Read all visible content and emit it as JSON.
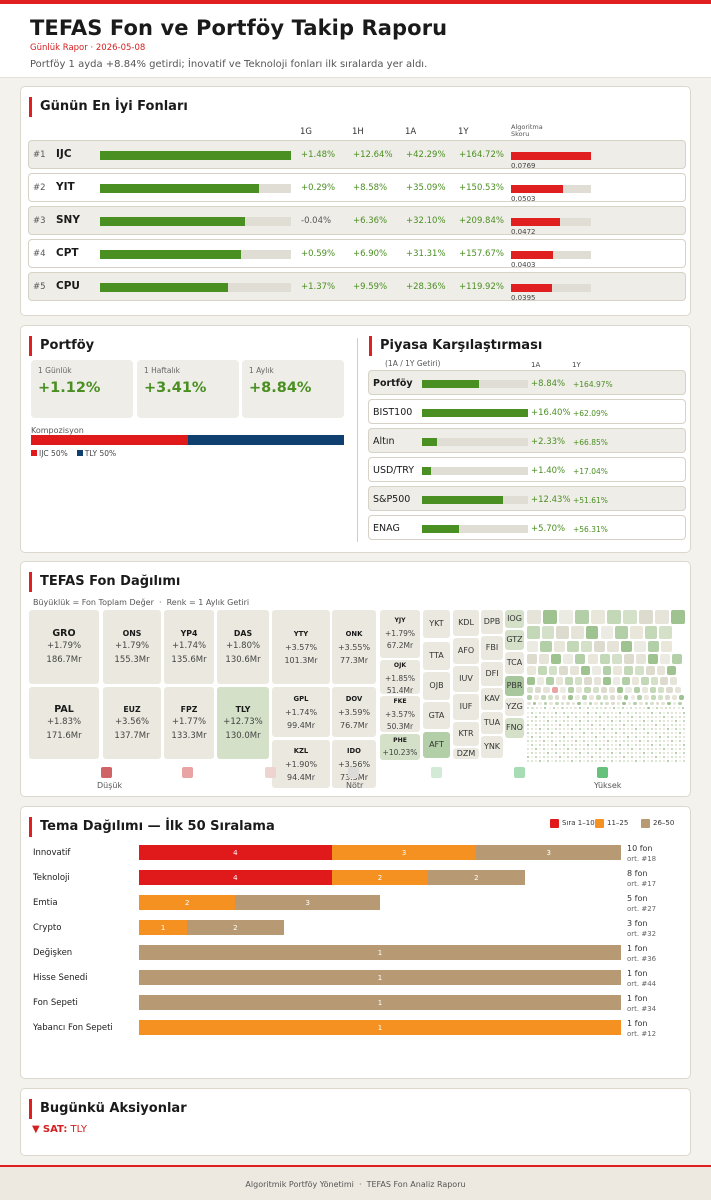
{
  "header": {
    "title": "TEFAS Fon ve Portföy Takip Raporu",
    "subtitle_type": "Günlük Rapor",
    "subtitle_date": "2026-05-08",
    "description": "Portföy 1 ayda +8.84% getirdi; İnovatif ve Teknoloji fonları ilk sıralarda yer aldı."
  },
  "top_funds": {
    "title": "Günün En İyi Fonları",
    "columns": [
      "1G",
      "1H",
      "1A",
      "1Y"
    ],
    "score_header_1": "Algoritma",
    "score_header_2": "Skoru",
    "rows": [
      {
        "rank": "#1",
        "code": "IJC",
        "g1": "+1.48%",
        "h1": "+12.64%",
        "a1": "+42.29%",
        "y1": "+164.72%",
        "score": "0.0769",
        "bar": 1.0,
        "score_frac": 1.0
      },
      {
        "rank": "#2",
        "code": "YIT",
        "g1": "+0.29%",
        "h1": "+8.58%",
        "a1": "+35.09%",
        "y1": "+150.53%",
        "score": "0.0503",
        "bar": 0.83,
        "score_frac": 0.65
      },
      {
        "rank": "#3",
        "code": "SNY",
        "g1": "-0.04%",
        "h1": "+6.36%",
        "a1": "+32.10%",
        "y1": "+209.84%",
        "score": "0.0472",
        "bar": 0.76,
        "score_frac": 0.61
      },
      {
        "rank": "#4",
        "code": "CPT",
        "g1": "+0.59%",
        "h1": "+6.90%",
        "a1": "+31.31%",
        "y1": "+157.67%",
        "score": "0.0403",
        "bar": 0.74,
        "score_frac": 0.52
      },
      {
        "rank": "#5",
        "code": "CPU",
        "g1": "+1.37%",
        "h1": "+9.59%",
        "a1": "+28.36%",
        "y1": "+119.92%",
        "score": "0.0395",
        "bar": 0.67,
        "score_frac": 0.51
      }
    ]
  },
  "portfolio": {
    "title": "Portföy",
    "stats": [
      {
        "label": "1 Günlük",
        "value": "+1.12%"
      },
      {
        "label": "1 Haftalık",
        "value": "+3.41%"
      },
      {
        "label": "1 Aylık",
        "value": "+8.84%"
      }
    ],
    "composition_label": "Kompozisyon",
    "composition": [
      {
        "name": "IJC 50%",
        "frac": 0.5,
        "color": "#e01a1a"
      },
      {
        "name": "TLY 50%",
        "frac": 0.5,
        "color": "#0e3f6e"
      }
    ]
  },
  "market": {
    "title": "Piyasa Karşılaştırması",
    "subtitle": "(1A / 1Y Getiri)",
    "col_a": "1A",
    "col_y": "1Y",
    "rows": [
      {
        "name": "Portföy",
        "a": "+8.84%",
        "y": "+164.97%",
        "frac": 0.54,
        "bold": true
      },
      {
        "name": "BIST100",
        "a": "+16.40%",
        "y": "+62.09%",
        "frac": 1.0,
        "bold": false
      },
      {
        "name": "Altın",
        "a": "+2.33%",
        "y": "+66.85%",
        "frac": 0.14,
        "bold": false
      },
      {
        "name": "USD/TRY",
        "a": "+1.40%",
        "y": "+17.04%",
        "frac": 0.085,
        "bold": false
      },
      {
        "name": "S&P500",
        "a": "+12.43%",
        "y": "+51.61%",
        "frac": 0.76,
        "bold": false
      },
      {
        "name": "ENAG",
        "a": "+5.70%",
        "y": "+56.31%",
        "frac": 0.35,
        "bold": false
      }
    ]
  },
  "treemap": {
    "title": "TEFAS Fon Dağılımı",
    "subtitle": "Büyüklük = Fon Toplam Değer  ·  Renk = 1 Aylık Getiri",
    "big": [
      {
        "code": "GRO",
        "pct": "+1.79%",
        "size": "186.7Mr"
      },
      {
        "code": "ONS",
        "pct": "+1.79%",
        "size": "155.3Mr"
      },
      {
        "code": "YP4",
        "pct": "+1.74%",
        "size": "135.6Mr"
      },
      {
        "code": "DAS",
        "pct": "+1.80%",
        "size": "130.6Mr"
      },
      {
        "code": "PAL",
        "pct": "+1.83%",
        "size": "171.6Mr"
      },
      {
        "code": "EUZ",
        "pct": "+3.56%",
        "size": "137.7Mr"
      },
      {
        "code": "FPZ",
        "pct": "+1.77%",
        "size": "133.3Mr"
      },
      {
        "code": "TLY",
        "pct": "+12.73%",
        "size": "130.0Mr"
      },
      {
        "code": "YTY",
        "pct": "+3.57%",
        "size": "101.3Mr"
      },
      {
        "code": "ONK",
        "pct": "+3.55%",
        "size": "77.3Mr"
      },
      {
        "code": "GPL",
        "pct": "+1.74%",
        "size": "99.4Mr"
      },
      {
        "code": "DOV",
        "pct": "+3.59%",
        "size": "76.7Mr"
      },
      {
        "code": "KZL",
        "pct": "+1.90%",
        "size": "94.4Mr"
      },
      {
        "code": "IDO",
        "pct": "+3.56%",
        "size": "73.5Mr"
      },
      {
        "code": "YJY",
        "pct": "+1.79%",
        "size": "67.2Mr"
      },
      {
        "code": "OJK",
        "pct": "+1.85%",
        "size": "51.4Mr"
      },
      {
        "code": "FKE",
        "pct": "+3.57%",
        "size": "50.3Mr"
      },
      {
        "code": "PHE",
        "pct": "+10.23%",
        "size": ""
      }
    ],
    "small": [
      "YKT",
      "TTA",
      "OJB",
      "GTA",
      "AFT",
      "KDL",
      "AFO",
      "IUV",
      "IUF",
      "KTR",
      "DZM",
      "DPB",
      "FBI",
      "DFI",
      "KAV",
      "TUA",
      "YNK",
      "IOG",
      "GTZ",
      "TCA",
      "PBR",
      "YZG",
      "FNO"
    ],
    "legend": {
      "low": "Düşük",
      "mid": "Nötr",
      "high": "Yüksek"
    }
  },
  "themes": {
    "title": "Tema Dağılımı — İlk 50 Sıralama",
    "legend": [
      "Sıra 1–10",
      "11–25",
      "26–50"
    ],
    "rows": [
      {
        "name": "Innovatif",
        "r": 4,
        "o": 3,
        "t": 3,
        "count": "10 fon",
        "avg": "ort. #18"
      },
      {
        "name": "Teknoloji",
        "r": 4,
        "o": 2,
        "t": 2,
        "count": "8 fon",
        "avg": "ort. #17"
      },
      {
        "name": "Emtia",
        "r": 0,
        "o": 2,
        "t": 3,
        "count": "5 fon",
        "avg": "ort. #27"
      },
      {
        "name": "Crypto",
        "r": 0,
        "o": 1,
        "t": 2,
        "count": "3 fon",
        "avg": "ort. #32"
      },
      {
        "name": "Değişken",
        "r": 0,
        "o": 0,
        "t": 1,
        "count": "1 fon",
        "avg": "ort. #36"
      },
      {
        "name": "Hisse Senedi",
        "r": 0,
        "o": 0,
        "t": 1,
        "count": "1 fon",
        "avg": "ort. #44"
      },
      {
        "name": "Fon Sepeti",
        "r": 0,
        "o": 0,
        "t": 1,
        "count": "1 fon",
        "avg": "ort. #34"
      },
      {
        "name": "Yabancı Fon Sepeti",
        "r": 0,
        "o": 1,
        "t": 0,
        "count": "1 fon",
        "avg": "ort. #12"
      }
    ]
  },
  "actions": {
    "title": "Bugünkü Aksiyonlar",
    "label": "SAT:",
    "value": "TLY"
  },
  "footer": {
    "text": "Algoritmik Portföy Yönetimi  ·  TEFAS Fon Analiz Raporu"
  },
  "colors": {
    "accent": "#e02020",
    "positive": "#4a8f22",
    "navy": "#0e3f6e",
    "orange": "#f59121",
    "tan": "#b79a74"
  }
}
